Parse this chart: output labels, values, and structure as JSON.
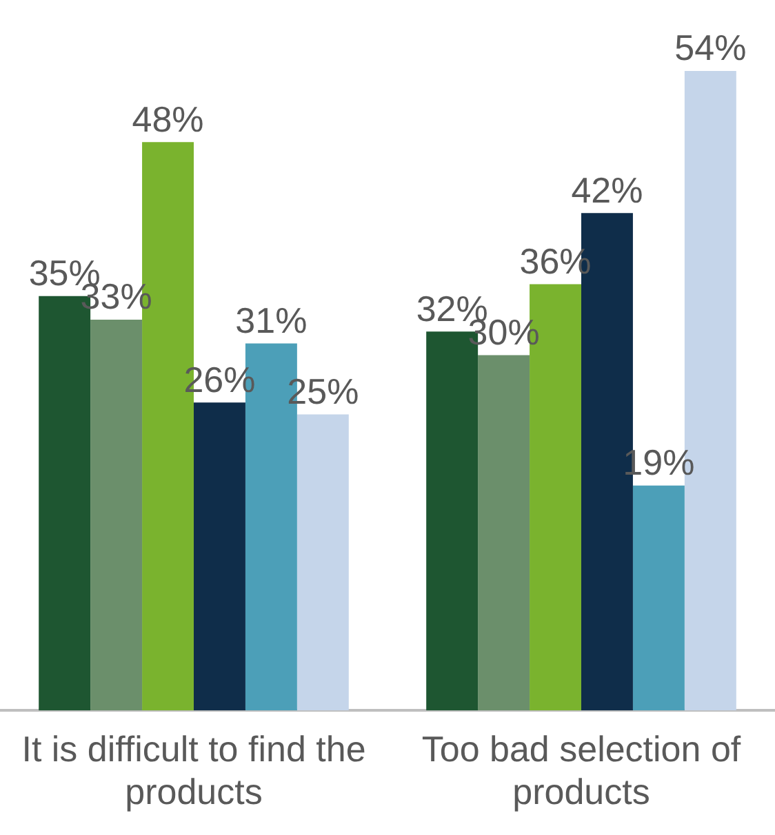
{
  "chart_data": {
    "type": "bar",
    "categories": [
      "It is difficult to find the products",
      "Too bad selection of products"
    ],
    "series": [
      {
        "color": "#1e5631",
        "values": [
          35,
          32
        ],
        "value_labels": [
          "35%",
          "32%"
        ]
      },
      {
        "color": "#6b8f6b",
        "values": [
          33,
          30
        ],
        "value_labels": [
          "33%",
          "30%"
        ]
      },
      {
        "color": "#7ab32e",
        "values": [
          48,
          36
        ],
        "value_labels": [
          "48%",
          "36%"
        ]
      },
      {
        "color": "#0f2d4a",
        "values": [
          26,
          42
        ],
        "value_labels": [
          "26%",
          "42%"
        ]
      },
      {
        "color": "#4c9fb8",
        "values": [
          31,
          19
        ],
        "value_labels": [
          "31%",
          "19%"
        ]
      },
      {
        "color": "#c5d5ea",
        "values": [
          25,
          54
        ],
        "value_labels": [
          "25%",
          "54%"
        ]
      }
    ],
    "legend": false,
    "grid": false
  }
}
